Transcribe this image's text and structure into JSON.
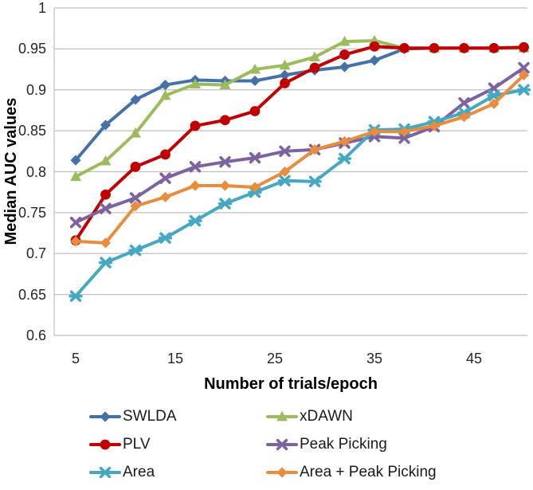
{
  "chart_data": {
    "type": "line",
    "title": "",
    "xlabel": "Number of trials/epoch",
    "ylabel": "Median AUC values",
    "x": [
      5,
      8,
      11,
      14,
      17,
      20,
      23,
      26,
      29,
      32,
      35,
      38,
      41,
      44,
      47,
      50
    ],
    "x_ticks": [
      5,
      15,
      25,
      35,
      45
    ],
    "y_ticks": [
      1,
      0.95,
      0.9,
      0.85,
      0.8,
      0.75,
      0.7,
      0.65,
      0.6
    ],
    "ylim": [
      0.6,
      1.0
    ],
    "grid": "horizontal",
    "legend_position": "bottom",
    "gridline_color": "#BFBFBF",
    "axis_line_color": "#BFBFBF",
    "series": [
      {
        "name": "SWLDA",
        "color": "#4472A8",
        "marker": "diamond",
        "values": [
          0.814,
          0.857,
          0.888,
          0.906,
          0.912,
          0.911,
          0.911,
          0.918,
          0.924,
          0.928,
          0.936,
          0.95,
          0.951,
          0.951,
          0.951,
          0.951
        ]
      },
      {
        "name": "xDAWN",
        "color": "#9CBB5C",
        "marker": "triangle",
        "values": [
          0.794,
          0.813,
          0.847,
          0.893,
          0.907,
          0.906,
          0.925,
          0.93,
          0.94,
          0.959,
          0.96,
          0.951,
          0.951,
          0.951,
          0.951,
          0.951
        ]
      },
      {
        "name": "PLV",
        "color": "#C00000",
        "marker": "circle",
        "values": [
          0.716,
          0.772,
          0.806,
          0.821,
          0.856,
          0.863,
          0.874,
          0.908,
          0.927,
          0.943,
          0.953,
          0.951,
          0.951,
          0.951,
          0.951,
          0.952
        ]
      },
      {
        "name": "Peak Picking",
        "color": "#7D62A0",
        "marker": "x",
        "values": [
          0.738,
          0.755,
          0.768,
          0.792,
          0.806,
          0.812,
          0.817,
          0.825,
          0.827,
          0.835,
          0.843,
          0.841,
          0.855,
          0.884,
          0.902,
          0.927
        ]
      },
      {
        "name": "Area",
        "color": "#44A8C2",
        "marker": "asterisk",
        "values": [
          0.648,
          0.689,
          0.704,
          0.719,
          0.74,
          0.761,
          0.775,
          0.789,
          0.788,
          0.816,
          0.851,
          0.852,
          0.861,
          0.872,
          0.893,
          0.9
        ]
      },
      {
        "name": "Area + Peak Picking",
        "color": "#E98C3D",
        "marker": "diamond",
        "values": [
          0.715,
          0.713,
          0.758,
          0.769,
          0.783,
          0.783,
          0.781,
          0.8,
          0.827,
          0.837,
          0.849,
          0.849,
          0.856,
          0.867,
          0.883,
          0.918
        ]
      }
    ]
  }
}
